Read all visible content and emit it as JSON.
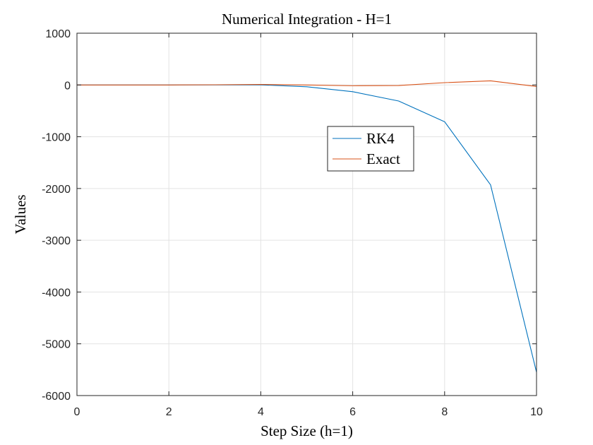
{
  "chart_data": {
    "type": "line",
    "title": "Numerical Integration - H=1",
    "xlabel": "Step Size (h=1)",
    "ylabel": "Values",
    "xlim": [
      0,
      10
    ],
    "ylim": [
      -6000,
      1000
    ],
    "xticks": [
      "0",
      "2",
      "4",
      "6",
      "8",
      "10"
    ],
    "yticks": [
      "1000",
      "0",
      "-1000",
      "-2000",
      "-3000",
      "-4000",
      "-5000",
      "-6000"
    ],
    "grid": true,
    "legend_position": "center-right",
    "x": [
      0,
      1,
      2,
      3,
      4,
      5,
      6,
      7,
      8,
      9,
      10
    ],
    "series": [
      {
        "name": "RK4",
        "color": "#0072BD",
        "values": [
          0,
          0,
          0,
          2,
          2,
          -35,
          -130,
          -310,
          -710,
          -1930,
          -5550
        ]
      },
      {
        "name": "Exact",
        "color": "#D95319",
        "values": [
          0,
          0,
          0,
          4,
          10,
          0,
          -15,
          -10,
          45,
          80,
          -30
        ]
      }
    ]
  }
}
